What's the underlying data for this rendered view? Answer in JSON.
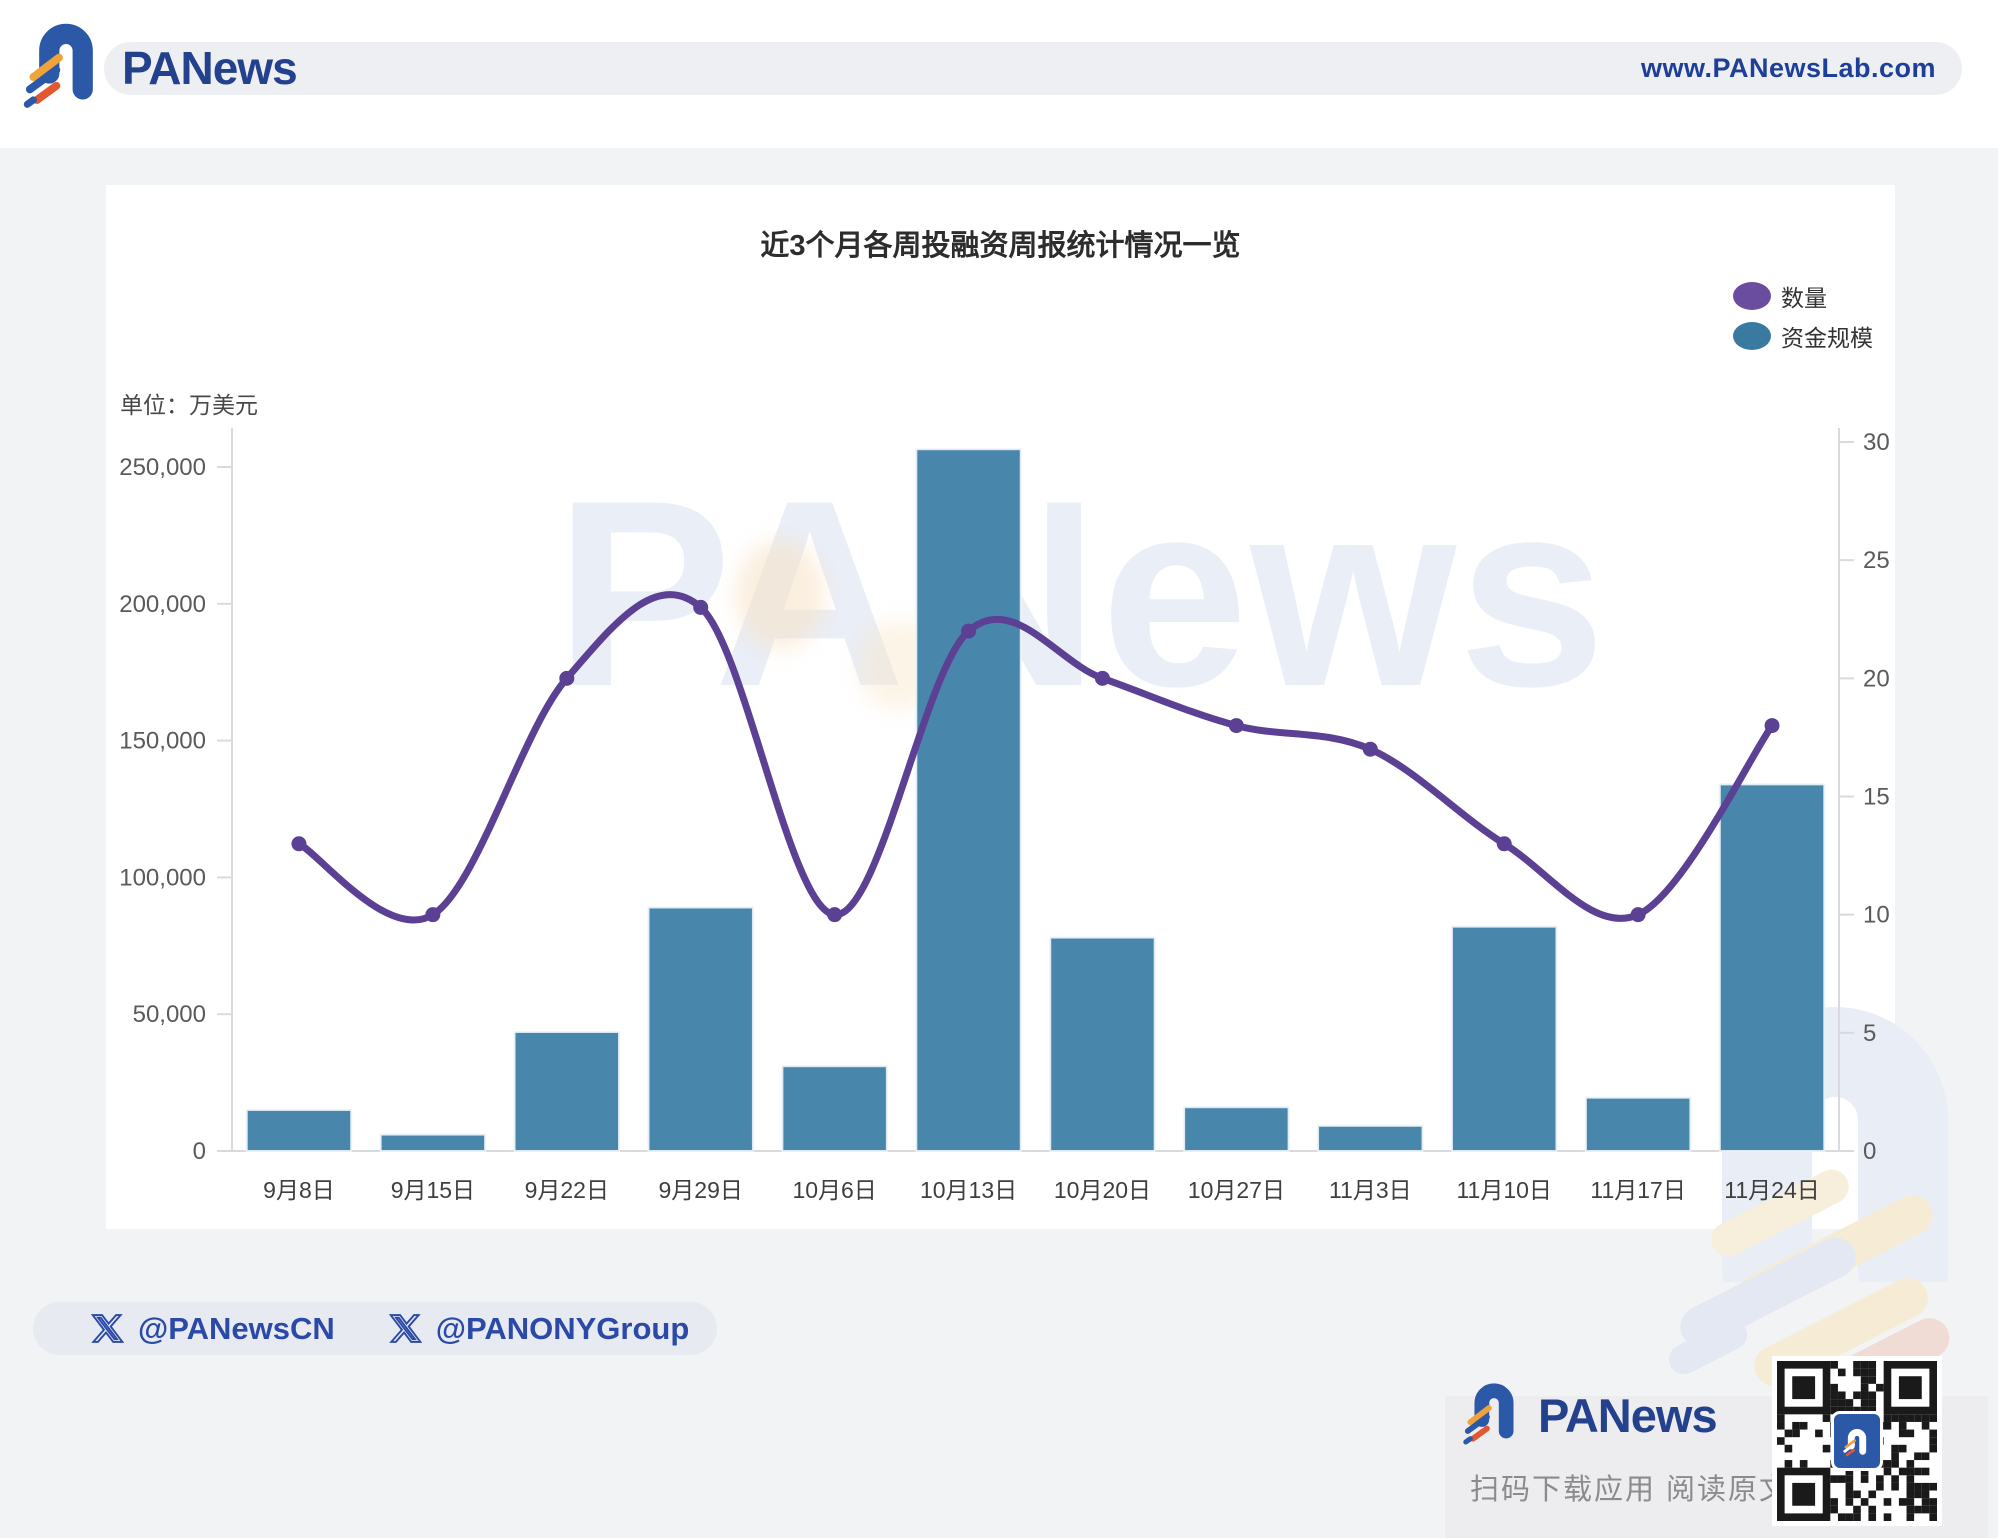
{
  "header": {
    "brand": "PANews",
    "url": "www.PANewsLab.com"
  },
  "chart": {
    "title": "近3个月各周投融资周报统计情况一览",
    "unit_label": "单位：万美元",
    "watermark": "PANews",
    "legend": [
      {
        "label": "数量",
        "color": "#6a4d9e"
      },
      {
        "label": "资金规模",
        "color": "#3a7aa0"
      }
    ]
  },
  "chart_data": {
    "type": "bar+line",
    "title": "近3个月各周投融资周报统计情况一览",
    "categories": [
      "9月8日",
      "9月15日",
      "9月22日",
      "9月29日",
      "10月6日",
      "10月13日",
      "10月20日",
      "10月27日",
      "11月3日",
      "11月10日",
      "11月17日",
      "11月24日"
    ],
    "series": [
      {
        "name": "资金规模",
        "type": "bar",
        "yaxis": "left",
        "color": "#4886ac",
        "values": [
          15000,
          6000,
          43500,
          89000,
          31000,
          256500,
          78000,
          16000,
          9200,
          82000,
          19500,
          134000
        ]
      },
      {
        "name": "数量",
        "type": "line",
        "yaxis": "right",
        "color": "#5b4094",
        "values": [
          13,
          10,
          20,
          23,
          10,
          22,
          20,
          18,
          17,
          13,
          10,
          18
        ]
      }
    ],
    "left_axis": {
      "unit": "万美元",
      "ticks": [
        0,
        50000,
        100000,
        150000,
        200000,
        250000
      ],
      "range": [
        0,
        267000
      ]
    },
    "right_axis": {
      "ticks": [
        0,
        5,
        10,
        15,
        20,
        25,
        30
      ],
      "range": [
        0,
        30
      ]
    },
    "grid": "off",
    "legend_position": "top-right"
  },
  "footer": {
    "handles": [
      "@PANewsCN",
      "@PANONYGroup"
    ]
  },
  "download": {
    "brand": "PANews",
    "caption": "扫码下载应用  阅读原文"
  }
}
